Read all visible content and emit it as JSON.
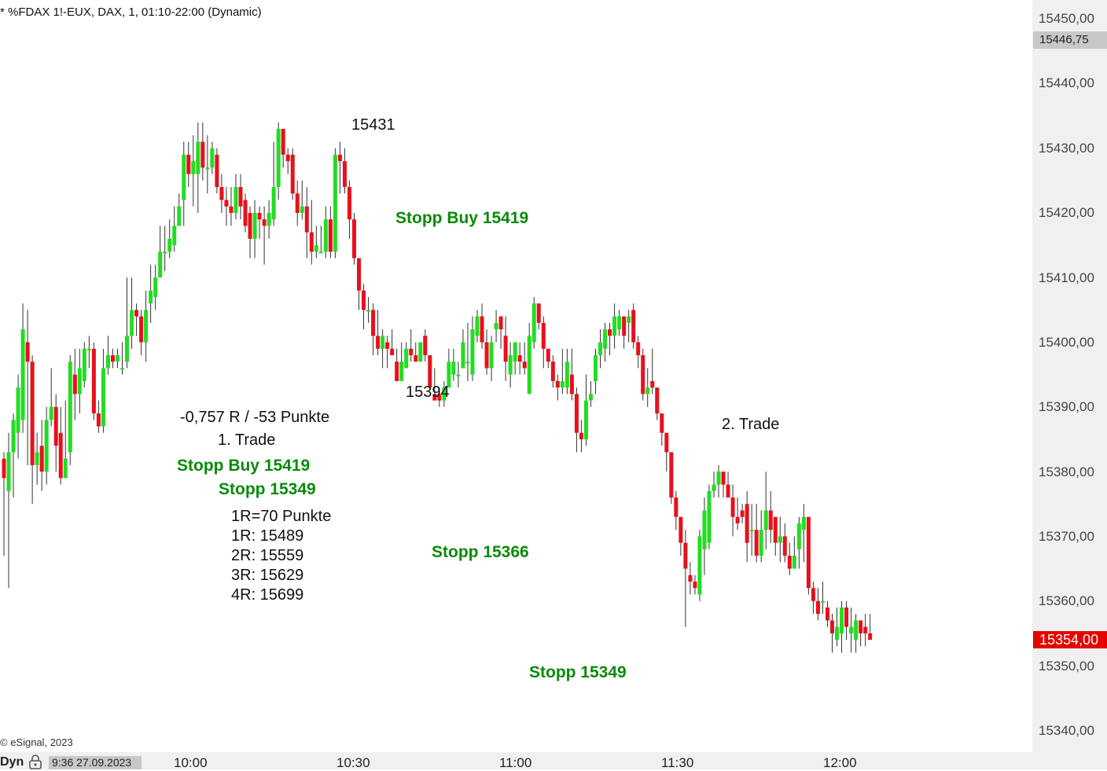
{
  "header": {
    "title": "* %FDAX 1!-EUX, DAX, 1, 01:10-22:00 (Dynamic)"
  },
  "footer": {
    "copyright": "© eSignal, 2023",
    "dyn_label": "Dyn",
    "date_time": "9:36 27.09.2023",
    "icon": "lock-icon"
  },
  "price_axis": {
    "ticks": [
      "15450,00",
      "15440,00",
      "15430,00",
      "15420,00",
      "15410,00",
      "15400,00",
      "15390,00",
      "15380,00",
      "15370,00",
      "15360,00",
      "15350,00",
      "15340,00"
    ],
    "last_marker": "15446,75",
    "current_price": "15354,00",
    "current_color": "#e60000"
  },
  "time_axis": {
    "ticks": [
      "10:00",
      "10:30",
      "11:00",
      "11:30",
      "12:00"
    ]
  },
  "annotations": {
    "high_label": "15431",
    "low_label": "15394",
    "stopp_buy_top": "Stopp Buy 15419",
    "result": "-0,757 R / -53 Punkte",
    "trade1": "1. Trade",
    "trade2": "2. Trade",
    "stopp_buy": "Stopp Buy 15419",
    "stopp_1": "Stopp 15349",
    "r_def": "1R=70 Punkte",
    "r1": "1R: 15489",
    "r2": "2R: 15559",
    "r3": "3R: 15629",
    "r4": "4R: 15699",
    "stopp_2": "Stopp 15366",
    "stopp_3": "Stopp 15349"
  },
  "colors": {
    "up": "#22dd22",
    "down": "#e8101c",
    "wick": "#333333",
    "annotation_green": "#0a8a0a"
  },
  "chart_data": {
    "type": "candlestick",
    "title": "* %FDAX 1!-EUX, DAX, 1, 01:10-22:00 (Dynamic)",
    "ylim": [
      15340,
      15450
    ],
    "interval": "1 minute",
    "x_ticks": [
      "10:00",
      "10:30",
      "11:00",
      "11:30",
      "12:00"
    ],
    "candles": [
      [
        15382,
        15379,
        15383,
        15367
      ],
      [
        15377,
        15383,
        15386,
        15362
      ],
      [
        15383,
        15388,
        15389,
        15376
      ],
      [
        15386,
        15393,
        15395,
        15382
      ],
      [
        15388,
        15402,
        15406,
        15386
      ],
      [
        15400,
        15397,
        15405,
        15381
      ],
      [
        15397,
        15381,
        15398,
        15375
      ],
      [
        15381,
        15383,
        15386,
        15378
      ],
      [
        15384,
        15380,
        15388,
        15377
      ],
      [
        15380,
        15388,
        15390,
        15378
      ],
      [
        15388,
        15390,
        15396,
        15387
      ],
      [
        15390,
        15384,
        15392,
        15380
      ],
      [
        15386,
        15379,
        15390,
        15378
      ],
      [
        15379,
        15382,
        15391,
        15380
      ],
      [
        15383,
        15397,
        15398,
        15381
      ],
      [
        15395,
        15392,
        15399,
        15388
      ],
      [
        15392,
        15396,
        15399,
        15389
      ],
      [
        15394,
        15399,
        15400,
        15393
      ],
      [
        15399,
        15399,
        15401,
        15396
      ],
      [
        15399,
        15389,
        15400,
        15388
      ],
      [
        15389,
        15387,
        15391,
        15386
      ],
      [
        15387,
        15396,
        15399,
        15386
      ],
      [
        15396,
        15398,
        15401,
        15395
      ],
      [
        15398,
        15397,
        15399,
        15396
      ],
      [
        15397,
        15398,
        15399,
        15396
      ],
      [
        15396,
        15396,
        15400,
        15395
      ],
      [
        15397,
        15401,
        15410,
        15396
      ],
      [
        15401,
        15405,
        15410,
        15399
      ],
      [
        15405,
        15404,
        15406,
        15401
      ],
      [
        15404,
        15400,
        15405,
        15398
      ],
      [
        15400,
        15405,
        15408,
        15397
      ],
      [
        15406,
        15408,
        15412,
        15403
      ],
      [
        15407,
        15410,
        15412,
        15405
      ],
      [
        15410,
        15414,
        15418,
        15411
      ],
      [
        15414,
        15414,
        15418,
        15411
      ],
      [
        15414,
        15416,
        15419,
        15413
      ],
      [
        15415,
        15418,
        15421,
        15414
      ],
      [
        15418,
        15421,
        15423,
        15418
      ],
      [
        15422,
        15429,
        15431,
        15418
      ],
      [
        15429,
        15426,
        15431,
        15424
      ],
      [
        15426,
        15428,
        15432,
        15421
      ],
      [
        15426,
        15431,
        15434,
        15420
      ],
      [
        15431,
        15427,
        15434,
        15425
      ],
      [
        15427,
        15427,
        15432,
        15423
      ],
      [
        15427,
        15430,
        15431,
        15426
      ],
      [
        15429,
        15424,
        15430,
        15423
      ],
      [
        15424,
        15422,
        15426,
        15420
      ],
      [
        15422,
        15421,
        15424,
        15418
      ],
      [
        15421,
        15420,
        15424,
        15418
      ],
      [
        15420,
        15424,
        15426,
        15419
      ],
      [
        15424,
        15421,
        15426,
        15419
      ],
      [
        15422,
        15418,
        15423,
        15417
      ],
      [
        15420,
        15416,
        15421,
        15413
      ],
      [
        15416,
        15420,
        15422,
        15413
      ],
      [
        15420,
        15419,
        15421,
        15416
      ],
      [
        15419,
        15418,
        15421,
        15412
      ],
      [
        15418,
        15420,
        15422,
        15416
      ],
      [
        15419,
        15424,
        15431,
        15418
      ],
      [
        15424,
        15433,
        15434,
        15422
      ],
      [
        15433,
        15429,
        15433,
        15427
      ],
      [
        15429,
        15428,
        15430,
        15426
      ],
      [
        15429,
        15423,
        15430,
        15422
      ],
      [
        15423,
        15420,
        15425,
        15418
      ],
      [
        15420,
        15421,
        15425,
        15419
      ],
      [
        15421,
        15417,
        15424,
        15413
      ],
      [
        15417,
        15414,
        15422,
        15412
      ],
      [
        15414,
        15415,
        15418,
        15413
      ],
      [
        15414,
        15414,
        15418,
        15414
      ],
      [
        15414,
        15419,
        15421,
        15413
      ],
      [
        15419,
        15414,
        15421,
        15413
      ],
      [
        15414,
        15429,
        15430,
        15413
      ],
      [
        15429,
        15428,
        15431,
        15423
      ],
      [
        15428,
        15424,
        15430,
        15423
      ],
      [
        15424,
        15419,
        15425,
        15416
      ],
      [
        15419,
        15413,
        15420,
        15412
      ],
      [
        15413,
        15408,
        15409,
        15405
      ],
      [
        15408,
        15405,
        15409,
        15402
      ],
      [
        15405,
        15405,
        15407,
        15403
      ],
      [
        15405,
        15401,
        15406,
        15398
      ],
      [
        15401,
        15399,
        15405,
        15398
      ],
      [
        15399,
        15401,
        15402,
        15396
      ],
      [
        15400,
        15399,
        15401,
        15396
      ],
      [
        15399,
        15398,
        15402,
        15398
      ],
      [
        15397,
        15394,
        15399,
        15394
      ],
      [
        15394,
        15397,
        15400,
        15396
      ],
      [
        15396,
        15399,
        15400,
        15396
      ],
      [
        15399,
        15398,
        15402,
        15397
      ],
      [
        15398,
        15397,
        15400,
        15397
      ],
      [
        15397,
        15400,
        15400,
        15398
      ],
      [
        15401,
        15398,
        15402,
        15397
      ],
      [
        15398,
        15393,
        15398,
        15393
      ],
      [
        15392,
        15391,
        15396,
        15391
      ],
      [
        15392,
        15391,
        15393,
        15390
      ],
      [
        15391,
        15393,
        15394,
        15390
      ],
      [
        15393,
        15397,
        15399,
        15393
      ],
      [
        15395,
        15397,
        15399,
        15394
      ],
      [
        15395,
        15395,
        15397,
        15393
      ],
      [
        15396,
        15400,
        15402,
        15396
      ],
      [
        15397,
        15397,
        15403,
        15394
      ],
      [
        15395,
        15402,
        15404,
        15394
      ],
      [
        15401,
        15404,
        15405,
        15400
      ],
      [
        15404,
        15400,
        15406,
        15399
      ],
      [
        15400,
        15396,
        15402,
        15395
      ],
      [
        15396,
        15400,
        15401,
        15394
      ],
      [
        15402,
        15403,
        15405,
        15400
      ],
      [
        15404,
        15402,
        15404,
        15399
      ],
      [
        15401,
        15397,
        15404,
        15394
      ],
      [
        15395,
        15398,
        15400,
        15393
      ],
      [
        15397,
        15400,
        15400,
        15395
      ],
      [
        15398,
        15397,
        15400,
        15395
      ],
      [
        15397,
        15396,
        15400,
        15395
      ],
      [
        15392,
        15401,
        15403,
        15392
      ],
      [
        15400,
        15406,
        15407,
        15399
      ],
      [
        15406,
        15403,
        15406,
        15402
      ],
      [
        15403,
        15399,
        15404,
        15396
      ],
      [
        15399,
        15397,
        15399,
        15396
      ],
      [
        15397,
        15394,
        15398,
        15393
      ],
      [
        15394,
        15393,
        15395,
        15391
      ],
      [
        15393,
        15394,
        15399,
        15392
      ],
      [
        15393,
        15397,
        15399,
        15392
      ],
      [
        15395,
        15392,
        15399,
        15391
      ],
      [
        15392,
        15386,
        15393,
        15383
      ],
      [
        15386,
        15385,
        15388,
        15383
      ],
      [
        15385,
        15391,
        15395,
        15384
      ],
      [
        15391,
        15392,
        15394,
        15390
      ],
      [
        15394,
        15398,
        15399,
        15392
      ],
      [
        15398,
        15400,
        15402,
        15396
      ],
      [
        15399,
        15402,
        15403,
        15397
      ],
      [
        15402,
        15401,
        15403,
        15398
      ],
      [
        15401,
        15404,
        15406,
        15399
      ],
      [
        15402,
        15404,
        15405,
        15401
      ],
      [
        15404,
        15401,
        15403,
        15399
      ],
      [
        15403,
        15404,
        15405,
        15400
      ],
      [
        15405,
        15400,
        15406,
        15399
      ],
      [
        15400,
        15398,
        15401,
        15396
      ],
      [
        15398,
        15392,
        15399,
        15391
      ],
      [
        15392,
        15393,
        15396,
        15390
      ],
      [
        15394,
        15393,
        15399,
        15392
      ],
      [
        15393,
        15389,
        15393,
        15388
      ],
      [
        15389,
        15386,
        15389,
        15384
      ],
      [
        15386,
        15383,
        15386,
        15380
      ],
      [
        15383,
        15376,
        15383,
        15375
      ],
      [
        15376,
        15373,
        15377,
        15371
      ],
      [
        15373,
        15369,
        15373,
        15367
      ],
      [
        15369,
        15365,
        15371,
        15356
      ],
      [
        15364,
        15363,
        15366,
        15361
      ],
      [
        15363,
        15362,
        15364,
        15361
      ],
      [
        15361,
        15370,
        15371,
        15360
      ],
      [
        15368,
        15374,
        15376,
        15364
      ],
      [
        15369,
        15377,
        15378,
        15368
      ],
      [
        15377,
        15378,
        15380,
        15376
      ],
      [
        15378,
        15380,
        15381,
        15376
      ],
      [
        15380,
        15378,
        15380,
        15376
      ],
      [
        15378,
        15376,
        15380,
        15376
      ],
      [
        15376,
        15373,
        15378,
        15370
      ],
      [
        15373,
        15372,
        15376,
        15371
      ],
      [
        15374,
        15373,
        15375,
        15372
      ],
      [
        15375,
        15369,
        15377,
        15366
      ],
      [
        15371,
        15371,
        15375,
        15367
      ],
      [
        15371,
        15367,
        15375,
        15366
      ],
      [
        15367,
        15371,
        15374,
        15366
      ],
      [
        15371,
        15374,
        15380,
        15368
      ],
      [
        15374,
        15371,
        15377,
        15369
      ],
      [
        15373,
        15369,
        15373,
        15367
      ],
      [
        15369,
        15370,
        15373,
        15366
      ],
      [
        15370,
        15367,
        15372,
        15366
      ],
      [
        15367,
        15365,
        15369,
        15364
      ],
      [
        15365,
        15367,
        15370,
        15365
      ],
      [
        15368,
        15372,
        15373,
        15365
      ],
      [
        15371,
        15373,
        15375,
        15366
      ],
      [
        15373,
        15362,
        15373,
        15361
      ],
      [
        15362,
        15360,
        15363,
        15358
      ],
      [
        15360,
        15358,
        15362,
        15357
      ],
      [
        15360,
        15360,
        15363,
        15358
      ],
      [
        15359,
        15357,
        15360,
        15356
      ],
      [
        15357,
        15355,
        15358,
        15352
      ],
      [
        15354,
        15356,
        15359,
        15353
      ],
      [
        15355,
        15359,
        15360,
        15352
      ],
      [
        15359,
        15356,
        15360,
        15354
      ],
      [
        15355,
        15356,
        15359,
        15352
      ],
      [
        15354,
        15357,
        15358,
        15352
      ],
      [
        15357,
        15355,
        15357,
        15353
      ],
      [
        15356,
        15355,
        15358,
        15353
      ],
      [
        15355,
        15354,
        15358,
        15354
      ]
    ]
  }
}
